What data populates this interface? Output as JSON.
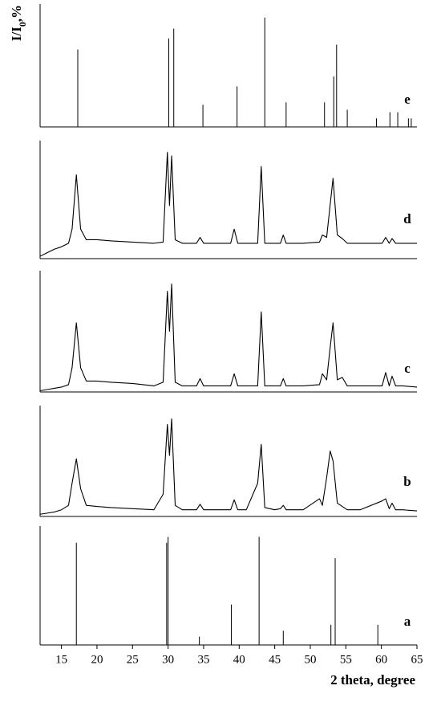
{
  "chart_data": [
    {
      "type": "stick",
      "label": "e",
      "ylabel": {
        "text": "I/I",
        "subscript": "0",
        "suffix": ",%"
      },
      "xlim": [
        12,
        65
      ],
      "ylim": [
        0,
        100
      ],
      "x": [
        17.3,
        30.1,
        30.8,
        34.9,
        39.7,
        43.6,
        46.6,
        52.0,
        53.3,
        53.7,
        55.2,
        59.3,
        61.2,
        62.3,
        63.8,
        64.2
      ],
      "values": [
        63,
        72,
        80,
        18,
        33,
        89,
        20,
        20,
        41,
        67,
        14,
        7,
        12,
        12,
        7,
        7
      ]
    },
    {
      "type": "line",
      "label": "d",
      "xlim": [
        12,
        65
      ],
      "ylim": [
        0,
        100
      ],
      "x": [
        12,
        13,
        14,
        15,
        16,
        16.5,
        17.1,
        17.7,
        18.5,
        20,
        22,
        25,
        28,
        29.3,
        29.9,
        30.2,
        30.5,
        31,
        32,
        34,
        34.5,
        35,
        37,
        38.8,
        39.3,
        39.8,
        41,
        42.6,
        43.1,
        43.6,
        45,
        45.8,
        46.2,
        46.6,
        49,
        51.3,
        51.7,
        52.3,
        52.8,
        53.2,
        53.8,
        54.5,
        55.2,
        57,
        60.1,
        60.6,
        61.1,
        61.5,
        62,
        63,
        65
      ],
      "values": [
        2,
        5,
        8,
        10,
        13,
        25,
        71,
        25,
        16,
        16,
        15,
        14,
        13,
        14,
        90,
        45,
        87,
        16,
        13,
        13,
        18,
        13,
        13,
        13,
        25,
        13,
        13,
        13,
        78,
        13,
        13,
        13,
        20,
        13,
        13,
        14,
        20,
        18,
        46,
        68,
        20,
        17,
        13,
        13,
        13,
        18,
        13,
        17,
        13,
        13,
        13
      ]
    },
    {
      "type": "line",
      "label": "c",
      "xlim": [
        12,
        65
      ],
      "ylim": [
        0,
        100
      ],
      "x": [
        12,
        13,
        14,
        15,
        16,
        16.5,
        17.1,
        17.7,
        18.5,
        20,
        22,
        25,
        28,
        29.3,
        29.9,
        30.2,
        30.5,
        31,
        32,
        34,
        34.5,
        35,
        37,
        38.8,
        39.3,
        39.8,
        41,
        42.6,
        43.1,
        43.6,
        45,
        45.8,
        46.2,
        46.6,
        49,
        51.3,
        51.7,
        52.3,
        52.8,
        53.2,
        53.8,
        54.5,
        55.2,
        57,
        60.1,
        60.6,
        61.1,
        61.5,
        62,
        63,
        65
      ],
      "values": [
        1,
        2,
        3,
        4,
        6,
        20,
        57,
        20,
        9,
        9,
        8,
        7,
        5,
        8,
        83,
        50,
        89,
        8,
        5,
        5,
        11,
        5,
        5,
        5,
        15,
        5,
        5,
        5,
        66,
        5,
        5,
        5,
        11,
        5,
        5,
        6,
        15,
        10,
        37,
        57,
        10,
        12,
        5,
        5,
        5,
        16,
        5,
        13,
        5,
        5,
        4
      ]
    },
    {
      "type": "line",
      "label": "b",
      "xlim": [
        12,
        65
      ],
      "ylim": [
        0,
        100
      ],
      "x": [
        12,
        13,
        14,
        15,
        16,
        16.5,
        17.1,
        17.7,
        18.5,
        20,
        22,
        25,
        28,
        29.3,
        29.9,
        30.2,
        30.5,
        31,
        32,
        34,
        34.5,
        35,
        37,
        38.8,
        39.3,
        39.8,
        41,
        42.6,
        43.1,
        43.6,
        45,
        45.8,
        46.2,
        46.6,
        49,
        51.3,
        51.7,
        52.3,
        52.8,
        53.2,
        53.8,
        54.5,
        55.2,
        57,
        60.1,
        60.6,
        61.1,
        61.5,
        62,
        63,
        65
      ],
      "values": [
        2,
        3,
        4,
        6,
        10,
        30,
        52,
        25,
        10,
        9,
        8,
        7,
        6,
        20,
        83,
        55,
        88,
        10,
        6,
        6,
        11,
        6,
        6,
        6,
        15,
        6,
        6,
        30,
        65,
        8,
        6,
        7,
        10,
        6,
        6,
        16,
        10,
        35,
        59,
        50,
        12,
        9,
        6,
        6,
        14,
        16,
        7,
        12,
        6,
        6,
        5
      ]
    },
    {
      "type": "stick",
      "label": "a",
      "xlim": [
        12,
        65
      ],
      "ylim": [
        0,
        100
      ],
      "x": [
        17.1,
        29.8,
        30.0,
        34.4,
        38.9,
        42.8,
        46.2,
        52.9,
        53.5,
        59.5
      ],
      "values": [
        86,
        86,
        91,
        7,
        34,
        91,
        12,
        17,
        73,
        17
      ],
      "xticks": [
        15,
        20,
        25,
        30,
        35,
        40,
        45,
        50,
        55,
        60,
        65
      ],
      "xlabel": "2 theta, degree"
    }
  ]
}
